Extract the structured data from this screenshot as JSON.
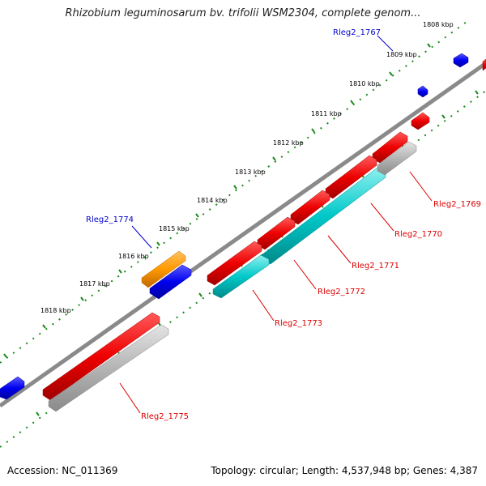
{
  "title": "Rhizobium leguminosarum bv. trifolii WSM2304, complete genom...",
  "footer": {
    "accession": "Accession: NC_011369",
    "topology": "Topology: circular; Length: 4,537,948 bp; Genes: 4,387"
  },
  "colors": {
    "backbone": "#808080",
    "ruler_ticks": "#1a8a1a",
    "forward_gene": "#ee0000",
    "reverse_gene": "#0000ee",
    "cds_feature": "#00c8c8",
    "other_feature": "#b4b4b4",
    "highlight_feature": "#ff9900",
    "label_forward": "#dd0000",
    "label_reverse": "#0000cc"
  },
  "ruler": [
    {
      "label": "1808 kbp"
    },
    {
      "label": "1809 kbp"
    },
    {
      "label": "1810 kbp"
    },
    {
      "label": "1811 kbp"
    },
    {
      "label": "1812 kbp"
    },
    {
      "label": "1813 kbp"
    },
    {
      "label": "1814 kbp"
    },
    {
      "label": "1815 kbp"
    },
    {
      "label": "1816 kbp"
    },
    {
      "label": "1817 kbp"
    },
    {
      "label": "1818 kbp"
    }
  ],
  "gene_labels": [
    {
      "text": "Rleg2_1767",
      "strand": "reverse"
    },
    {
      "text": "Rleg2_1774",
      "strand": "reverse"
    },
    {
      "text": "Rleg2_1769",
      "strand": "forward"
    },
    {
      "text": "Rleg2_1770",
      "strand": "forward"
    },
    {
      "text": "Rleg2_1771",
      "strand": "forward"
    },
    {
      "text": "Rleg2_1772",
      "strand": "forward"
    },
    {
      "text": "Rleg2_1773",
      "strand": "forward"
    },
    {
      "text": "Rleg2_1775",
      "strand": "forward"
    }
  ]
}
